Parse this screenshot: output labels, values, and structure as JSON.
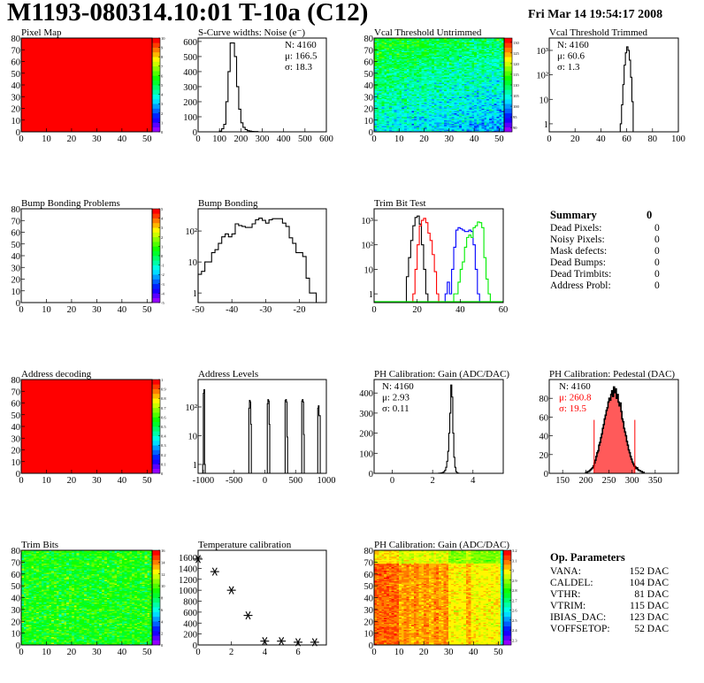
{
  "header": {
    "title": "M1193-080314.10:01 T-10a (C12)",
    "date": "Fri Mar 14 19:54:17 2008"
  },
  "summary": {
    "title": "Summary",
    "total": "0",
    "items": [
      {
        "label": "Dead Pixels:",
        "value": "0"
      },
      {
        "label": "Noisy Pixels:",
        "value": "0"
      },
      {
        "label": "Mask defects:",
        "value": "0"
      },
      {
        "label": "Dead Bumps:",
        "value": "0"
      },
      {
        "label": "Dead Trimbits:",
        "value": "0"
      },
      {
        "label": "Address Probl:",
        "value": "0"
      }
    ]
  },
  "op_parameters": {
    "title": "Op. Parameters",
    "items": [
      {
        "label": "VANA:",
        "value": "152 DAC"
      },
      {
        "label": "CALDEL:",
        "value": "104 DAC"
      },
      {
        "label": "VTHR:",
        "value": "81 DAC"
      },
      {
        "label": "VTRIM:",
        "value": "115 DAC"
      },
      {
        "label": "IBIAS_DAC:",
        "value": "123 DAC"
      },
      {
        "label": "VOFFSETOP:",
        "value": "52 DAC"
      }
    ]
  },
  "chart_data": [
    {
      "type": "heatmap",
      "title": "Pixel Map",
      "xlim": [
        0,
        52
      ],
      "ylim": [
        0,
        80
      ],
      "xticks": [
        0,
        10,
        20,
        30,
        40,
        50
      ],
      "yticks": [
        0,
        10,
        20,
        30,
        40,
        50,
        60,
        70,
        80
      ],
      "zlim": [
        0,
        10
      ],
      "zticks": [
        0,
        1,
        2,
        3,
        4,
        5,
        6,
        7,
        8,
        9,
        10
      ],
      "fill_value": 10
    },
    {
      "type": "bar",
      "title": "S-Curve widths: Noise (e⁻)",
      "xlim": [
        0,
        600
      ],
      "ylim": [
        0,
        623
      ],
      "xticks": [
        0,
        100,
        200,
        300,
        400,
        500,
        600
      ],
      "yticks": [
        0,
        100,
        200,
        300,
        400,
        500,
        600
      ],
      "stats": [
        {
          "text": "N: 4160"
        },
        {
          "text": "μ: 166.5"
        },
        {
          "text": "σ: 18.3"
        }
      ],
      "series": [
        {
          "color": "#000000",
          "x_start": 100,
          "bin_width": 10,
          "values": [
            5,
            20,
            50,
            200,
            400,
            590,
            590,
            500,
            300,
            150,
            60,
            30,
            15,
            8,
            5,
            3,
            2,
            2
          ]
        }
      ]
    },
    {
      "type": "heatmap",
      "title": "Vcal Threshold Untrimmed",
      "xlim": [
        0,
        52
      ],
      "ylim": [
        0,
        80
      ],
      "xticks": [
        0,
        10,
        20,
        30,
        40,
        50
      ],
      "yticks": [
        0,
        10,
        20,
        30,
        40,
        50,
        60,
        70,
        80
      ],
      "zlim": [
        88,
        132
      ],
      "zticks": [
        90,
        95,
        100,
        105,
        110,
        115,
        120,
        125,
        130
      ]
    },
    {
      "type": "bar",
      "title": "Vcal Threshold Trimmed",
      "xlim": [
        0,
        100
      ],
      "ylim": [
        0.47,
        3200
      ],
      "log_y": true,
      "xticks": [
        0,
        20,
        40,
        60,
        80,
        100
      ],
      "yticks": [
        1,
        10,
        100,
        1000
      ],
      "ytick_labels": [
        "1",
        "10",
        "10²",
        "10³"
      ],
      "stats": [
        {
          "text": "N: 4160"
        },
        {
          "text": "μ: 60.6"
        },
        {
          "text": "σ:  1.3"
        }
      ],
      "series": [
        {
          "color": "#000000",
          "x_start": 55,
          "bin_width": 1,
          "values": [
            1,
            6,
            40,
            250,
            800,
            1400,
            1000,
            400,
            80,
            8
          ]
        }
      ]
    },
    {
      "type": "heatmap",
      "title": "Bump Bonding Problems",
      "xlim": [
        0,
        52
      ],
      "ylim": [
        0,
        80
      ],
      "xticks": [
        0,
        10,
        20,
        30,
        40,
        50
      ],
      "yticks": [
        0,
        10,
        20,
        30,
        40,
        50,
        60,
        70,
        80
      ],
      "zlim": [
        -5,
        5
      ],
      "zticks": [
        -5,
        -4,
        -3,
        -2,
        -1,
        0,
        1,
        2,
        3,
        4,
        5
      ],
      "empty": true
    },
    {
      "type": "bar",
      "title": "Bump Bonding",
      "xlim": [
        -50,
        -12
      ],
      "ylim": [
        0.49,
        520
      ],
      "log_y": true,
      "xticks": [
        -50,
        -40,
        -30,
        -20
      ],
      "yticks": [
        1,
        10,
        100
      ],
      "ytick_labels": [
        "1",
        "10",
        "10²"
      ],
      "series": [
        {
          "color": "#000000",
          "x_start": -50,
          "bin_width": 1,
          "values": [
            4,
            5,
            10,
            10,
            20,
            25,
            40,
            65,
            80,
            65,
            80,
            170,
            150,
            140,
            130,
            130,
            170,
            230,
            260,
            220,
            180,
            230,
            250,
            250,
            250,
            180,
            140,
            60,
            40,
            20,
            20,
            15,
            3,
            1,
            1
          ]
        }
      ]
    },
    {
      "type": "bar",
      "title": "Trim Bit Test",
      "xlim": [
        0,
        60
      ],
      "ylim": [
        0.44,
        2950
      ],
      "log_y": true,
      "xticks": [
        0,
        20,
        40,
        60
      ],
      "yticks": [
        1,
        10,
        100,
        1000
      ],
      "ytick_labels": [
        "1",
        "10",
        "10²",
        "10³"
      ],
      "series": [
        {
          "color": "#000000",
          "x_start": 15,
          "bin_width": 1,
          "values": [
            5,
            30,
            150,
            600,
            1300,
            1500,
            700,
            100,
            10,
            1
          ]
        },
        {
          "color": "#ff0000",
          "x_start": 18,
          "bin_width": 1,
          "values": [
            1,
            10,
            100,
            600,
            1000,
            1200,
            800,
            300,
            150,
            40,
            8,
            1
          ]
        },
        {
          "color": "#0000ff",
          "x_start": 33,
          "bin_width": 1,
          "values": [
            1,
            3,
            1,
            10,
            80,
            400,
            500,
            450,
            400,
            350,
            350,
            400,
            350,
            100,
            10,
            1
          ]
        },
        {
          "color": "#00ee00",
          "x_start": 37,
          "bin_width": 1,
          "values": [
            1,
            1,
            3,
            10,
            20,
            80,
            200,
            250,
            200,
            500,
            600,
            850,
            800,
            500,
            30,
            4,
            1
          ]
        }
      ]
    },
    {
      "type": "heatmap",
      "title": "Address decoding",
      "xlim": [
        0,
        52
      ],
      "ylim": [
        0,
        80
      ],
      "xticks": [
        0,
        10,
        20,
        30,
        40,
        50
      ],
      "yticks": [
        0,
        10,
        20,
        30,
        40,
        50,
        60,
        70,
        80
      ],
      "zlim": [
        0,
        1
      ],
      "zticks": [
        0,
        0.1,
        0.2,
        0.3,
        0.4,
        0.5,
        0.6,
        0.7,
        0.8,
        0.9,
        1
      ],
      "fill_value": 1
    },
    {
      "type": "bar",
      "title": "Address Levels",
      "xlim": [
        -1085,
        1000
      ],
      "ylim": [
        0.49,
        900
      ],
      "log_y": true,
      "xticks": [
        -1000,
        -500,
        0,
        500,
        1000
      ],
      "yticks": [
        1,
        10,
        100
      ],
      "ytick_labels": [
        "1",
        "10",
        "10²"
      ],
      "series": [
        {
          "color": "#000000",
          "bin_width": 10,
          "bins": [
            [
              -1010,
              1
            ],
            [
              -1000,
              300
            ],
            [
              -990,
              400
            ],
            [
              -980,
              1
            ],
            [
              -260,
              90
            ],
            [
              -250,
              170
            ],
            [
              -240,
              150
            ],
            [
              -230,
              25
            ],
            [
              40,
              130
            ],
            [
              50,
              180
            ],
            [
              60,
              160
            ],
            [
              70,
              25
            ],
            [
              330,
              170
            ],
            [
              340,
              180
            ],
            [
              350,
              150
            ],
            [
              360,
              9
            ],
            [
              600,
              160
            ],
            [
              610,
              180
            ],
            [
              620,
              150
            ],
            [
              630,
              11
            ],
            [
              860,
              90
            ],
            [
              870,
              110
            ],
            [
              880,
              50
            ],
            [
              890,
              50
            ]
          ]
        }
      ]
    },
    {
      "type": "bar",
      "title": "PH Calibration: Gain (ADC/DAC)",
      "xlim": [
        -0.9,
        5.5
      ],
      "ylim": [
        0,
        467
      ],
      "xticks": [
        0,
        2,
        4
      ],
      "yticks": [
        0,
        100,
        200,
        300,
        400
      ],
      "stats": [
        {
          "text": "N: 4160"
        },
        {
          "text": "μ: 2.93"
        },
        {
          "text": "σ: 0.11"
        }
      ],
      "series": [
        {
          "color": "#000000",
          "x_start": 2.3,
          "bin_width": 0.05,
          "values": [
            1,
            1,
            2,
            3,
            5,
            8,
            15,
            30,
            60,
            110,
            200,
            300,
            440,
            380,
            200,
            80,
            30,
            8,
            3,
            1
          ]
        }
      ]
    },
    {
      "type": "bar",
      "title": "PH Calibration: Pedestal (DAC)",
      "xlim": [
        121,
        400
      ],
      "ylim": [
        0,
        100
      ],
      "xticks": [
        150,
        200,
        250,
        300,
        350
      ],
      "yticks": [
        0,
        20,
        40,
        60,
        80
      ],
      "stats": [
        {
          "text": "N: 4160",
          "color": "#000000"
        },
        {
          "text": "μ: 260.8",
          "color": "#ff0000"
        },
        {
          "text": "σ: 19.5",
          "color": "#ff0000"
        }
      ],
      "cut_lines": [
        218,
        306
      ],
      "fill_color": "#ff5a5a",
      "series": [
        {
          "color": "#000000",
          "x_start": 200,
          "bin_width": 2,
          "values": [
            1,
            1,
            2,
            2,
            3,
            4,
            5,
            6,
            8,
            11,
            14,
            18,
            22,
            24,
            30,
            33,
            38,
            42,
            48,
            52,
            58,
            62,
            67,
            70,
            76,
            80,
            78,
            84,
            88,
            82,
            92,
            86,
            90,
            80,
            84,
            76,
            72,
            75,
            66,
            58,
            55,
            48,
            44,
            40,
            34,
            30,
            25,
            22,
            18,
            15,
            12,
            10,
            8,
            7,
            5,
            6,
            4,
            3,
            3,
            2,
            2,
            1,
            1
          ]
        }
      ]
    },
    {
      "type": "heatmap",
      "title": "Trim Bits",
      "xlim": [
        0,
        52
      ],
      "ylim": [
        0,
        80
      ],
      "xticks": [
        0,
        10,
        20,
        30,
        40,
        50
      ],
      "yticks": [
        0,
        10,
        20,
        30,
        40,
        50,
        60,
        70,
        80
      ],
      "zlim": [
        0,
        16
      ],
      "zticks": [
        0,
        2,
        4,
        6,
        8,
        10,
        12,
        14,
        16
      ]
    },
    {
      "type": "scatter",
      "title": "Temperature calibration",
      "xlim": [
        0,
        7.7
      ],
      "ylim": [
        0,
        1730
      ],
      "xticks": [
        0,
        2,
        4,
        6
      ],
      "yticks": [
        0,
        200,
        400,
        600,
        800,
        1000,
        1200,
        1400,
        1600
      ],
      "x": [
        0,
        1,
        2,
        3,
        4,
        5,
        6,
        7
      ],
      "y": [
        1570,
        1340,
        1000,
        540,
        70,
        70,
        50,
        50
      ]
    },
    {
      "type": "heatmap",
      "title": "PH Calibration: Gain (ADC/DAC)",
      "xlim": [
        0,
        52
      ],
      "ylim": [
        0,
        80
      ],
      "xticks": [
        0,
        10,
        20,
        30,
        40,
        50
      ],
      "yticks": [
        0,
        10,
        20,
        30,
        40,
        50,
        60,
        70,
        80
      ],
      "zlim": [
        2.25,
        3.2
      ],
      "zticks": [
        2.3,
        2.4,
        2.5,
        2.6,
        2.7,
        2.8,
        2.9,
        3,
        3.1,
        3.2
      ]
    }
  ]
}
